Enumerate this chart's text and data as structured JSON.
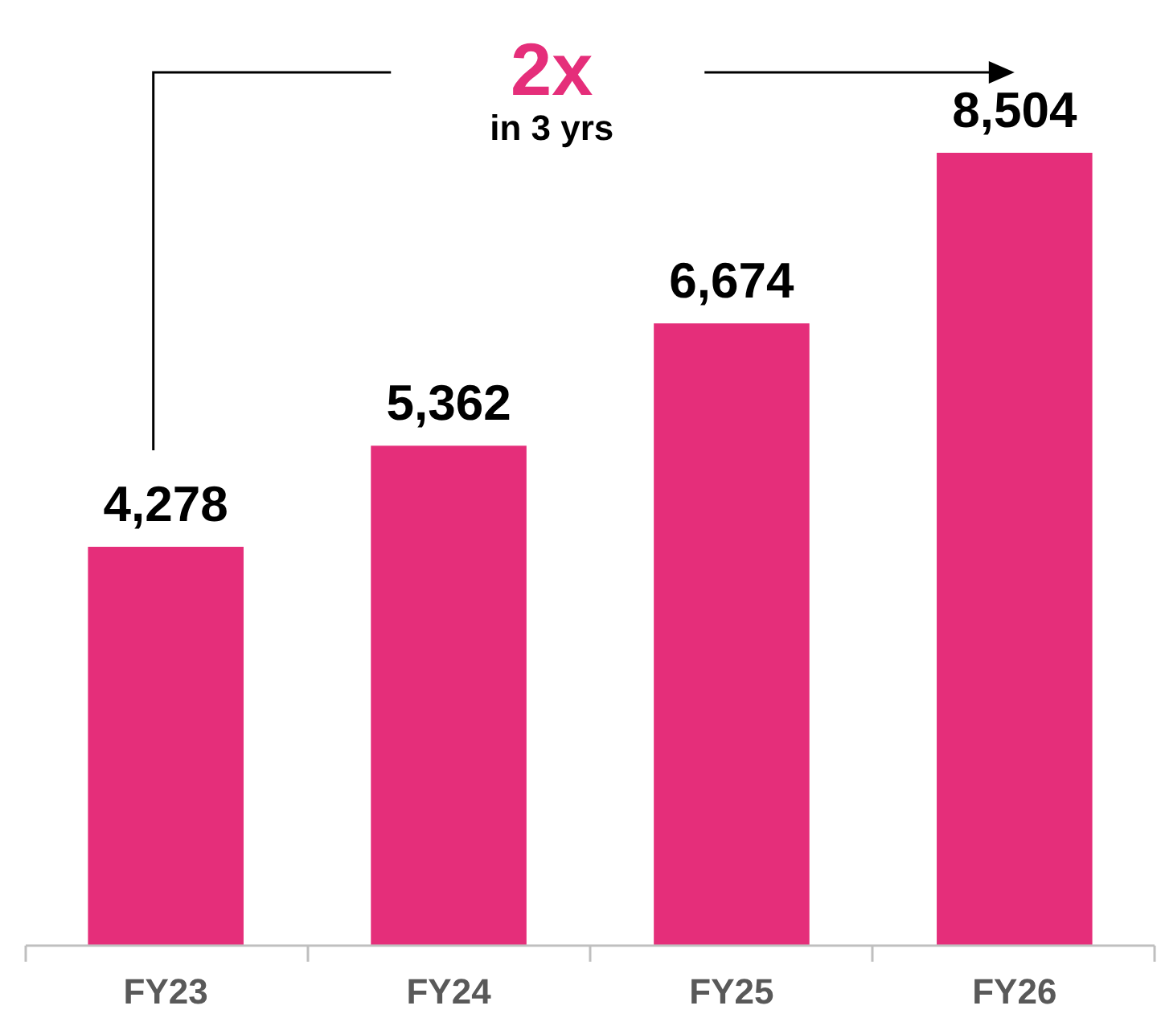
{
  "chart_data": {
    "type": "bar",
    "categories": [
      "FY23",
      "FY24",
      "FY25",
      "FY26"
    ],
    "values": [
      4278,
      5362,
      6674,
      8504
    ],
    "color": "#e52e7a",
    "data_labels": true,
    "value_labels": [
      "4,278",
      "5,362",
      "6,674",
      "8,504"
    ],
    "annotations": [
      "2x",
      "in 3 yrs"
    ]
  }
}
